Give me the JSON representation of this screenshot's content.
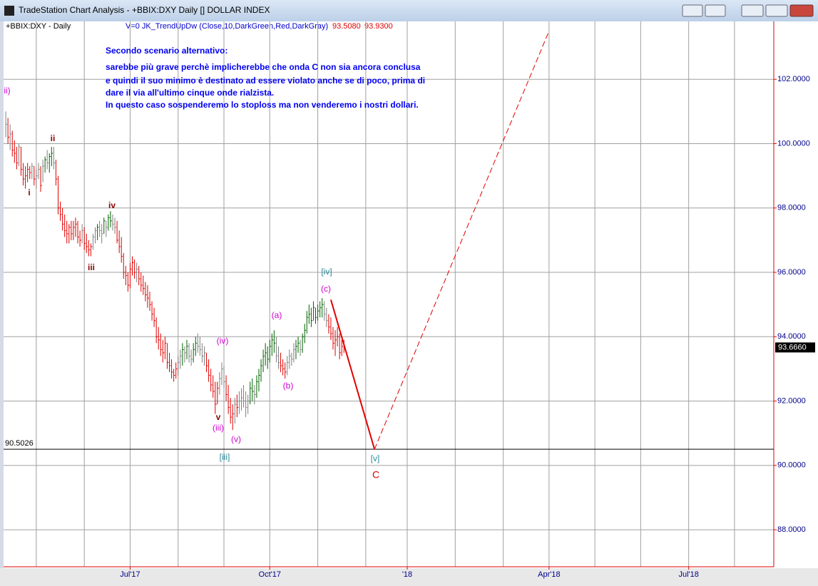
{
  "window": {
    "title": "TradeStation Chart Analysis - +BBIX:DXY Daily [] DOLLAR INDEX"
  },
  "chart_data": {
    "type": "ohlc",
    "symbol": "+BBIX:DXY - Daily",
    "indicator": "V=0  JK_TrendUpDw (Close,10,DarkGreen,Red,DarkGray)",
    "indicator_values": [
      {
        "value": 93.508,
        "label": "93.5080"
      },
      {
        "value": 93.93,
        "label": "93.9300"
      }
    ],
    "annotation_lines": [
      "Secondo scenario alternativo:",
      "sarebbe più grave perchè implicherebbe che onda C non sia ancora conclusa",
      "e quindi il suo minimo è destinato ad essere violato anche se di poco, prima di",
      "dare il via all'ultimo cinque onde rialzista.",
      "In questo caso sospenderemo lo stoploss ma non venderemo i nostri dollari."
    ],
    "wave_labels": [
      "ii)",
      "ii",
      "i",
      "iv",
      "iii",
      "(iv)",
      "v",
      "(iii)",
      "(v)",
      "[iii]",
      "(a)",
      "(b)",
      "[iv]",
      "(c)",
      "[v]",
      "C"
    ],
    "up_color": "#006400",
    "down_color": "#e00000",
    "neutral_color": "#808080",
    "bars": [
      [
        101.0,
        100.2,
        100.6
      ],
      [
        100.8,
        100.0,
        100.2
      ],
      [
        100.6,
        99.8,
        100.3
      ],
      [
        100.4,
        99.6,
        99.8
      ],
      [
        100.1,
        99.4,
        99.7
      ],
      [
        99.9,
        99.2,
        99.4
      ],
      [
        100.0,
        99.3,
        99.9
      ],
      [
        99.9,
        99.0,
        99.2
      ],
      [
        99.4,
        98.7,
        98.9
      ],
      [
        99.3,
        98.6,
        99.0
      ],
      [
        99.4,
        98.8,
        99.2
      ],
      [
        99.3,
        98.9,
        99.1
      ],
      [
        99.4,
        98.9,
        99.3
      ],
      [
        99.3,
        98.7,
        98.9
      ],
      [
        99.2,
        98.6,
        99.0
      ],
      [
        99.4,
        98.9,
        99.2
      ],
      [
        99.3,
        98.5,
        98.7
      ],
      [
        99.5,
        98.8,
        99.3
      ],
      [
        99.6,
        99.1,
        99.5
      ],
      [
        99.8,
        99.2,
        99.4
      ],
      [
        99.7,
        99.1,
        99.6
      ],
      [
        99.9,
        99.3,
        99.7
      ],
      [
        99.9,
        99.2,
        99.4
      ],
      [
        99.5,
        98.7,
        98.9
      ],
      [
        99.0,
        97.8,
        98.0
      ],
      [
        98.2,
        97.6,
        97.8
      ],
      [
        98.0,
        97.3,
        97.5
      ],
      [
        97.8,
        97.1,
        97.3
      ],
      [
        97.6,
        96.9,
        97.2
      ],
      [
        97.5,
        96.9,
        97.4
      ],
      [
        97.6,
        97.0,
        97.2
      ],
      [
        97.6,
        97.0,
        97.4
      ],
      [
        97.7,
        97.1,
        97.5
      ],
      [
        97.6,
        96.9,
        97.1
      ],
      [
        97.3,
        96.8,
        97.0
      ],
      [
        97.5,
        96.9,
        97.3
      ],
      [
        97.4,
        96.7,
        96.9
      ],
      [
        97.2,
        96.6,
        96.8
      ],
      [
        97.0,
        96.5,
        96.7
      ],
      [
        96.9,
        96.5,
        96.8
      ],
      [
        97.2,
        96.7,
        97.1
      ],
      [
        97.4,
        96.9,
        97.3
      ],
      [
        97.5,
        97.0,
        97.4
      ],
      [
        97.6,
        97.1,
        97.3
      ],
      [
        97.5,
        96.9,
        97.2
      ],
      [
        97.7,
        97.2,
        97.6
      ],
      [
        97.6,
        97.1,
        97.4
      ],
      [
        97.8,
        97.3,
        97.7
      ],
      [
        97.9,
        97.4,
        97.6
      ],
      [
        97.8,
        97.3,
        97.5
      ],
      [
        97.7,
        97.2,
        97.4
      ],
      [
        97.6,
        96.9,
        97.0
      ],
      [
        97.3,
        96.6,
        96.8
      ],
      [
        97.1,
        96.3,
        96.5
      ],
      [
        96.6,
        95.8,
        96.0
      ],
      [
        96.2,
        95.6,
        95.9
      ],
      [
        96.0,
        95.4,
        95.6
      ],
      [
        96.3,
        95.5,
        96.1
      ],
      [
        96.5,
        95.9,
        96.3
      ],
      [
        96.4,
        95.8,
        96.0
      ],
      [
        96.3,
        95.7,
        96.1
      ],
      [
        96.2,
        95.6,
        95.8
      ],
      [
        96.0,
        95.4,
        95.6
      ],
      [
        95.9,
        95.3,
        95.5
      ],
      [
        95.7,
        95.1,
        95.3
      ],
      [
        95.6,
        94.9,
        95.2
      ],
      [
        95.4,
        94.8,
        95.0
      ],
      [
        95.1,
        94.5,
        94.7
      ],
      [
        94.9,
        94.3,
        94.5
      ],
      [
        94.6,
        93.8,
        94.0
      ],
      [
        94.3,
        93.6,
        93.9
      ],
      [
        94.1,
        93.4,
        93.6
      ],
      [
        93.9,
        93.2,
        93.5
      ],
      [
        94.0,
        93.3,
        93.8
      ],
      [
        93.8,
        93.0,
        93.2
      ],
      [
        93.5,
        92.9,
        93.1
      ],
      [
        93.3,
        92.7,
        92.9
      ],
      [
        93.0,
        92.6,
        92.8
      ],
      [
        93.2,
        92.7,
        93.0
      ],
      [
        93.4,
        92.8,
        93.2
      ],
      [
        93.6,
        93.0,
        93.4
      ],
      [
        93.8,
        93.1,
        93.6
      ],
      [
        93.7,
        93.2,
        93.5
      ],
      [
        93.9,
        93.3,
        93.7
      ],
      [
        93.8,
        93.2,
        93.4
      ],
      [
        93.6,
        93.1,
        93.3
      ],
      [
        93.8,
        93.2,
        93.6
      ],
      [
        94.0,
        93.4,
        93.8
      ],
      [
        94.1,
        93.5,
        93.7
      ],
      [
        94.0,
        93.4,
        93.6
      ],
      [
        93.8,
        93.2,
        93.4
      ],
      [
        93.7,
        93.1,
        93.5
      ],
      [
        93.5,
        92.9,
        93.1
      ],
      [
        93.3,
        92.6,
        92.8
      ],
      [
        93.0,
        92.3,
        92.5
      ],
      [
        92.8,
        92.1,
        92.3
      ],
      [
        92.6,
        91.6,
        91.9
      ],
      [
        92.6,
        91.9,
        92.4
      ],
      [
        92.9,
        92.2,
        92.7
      ],
      [
        93.2,
        92.5,
        93.0
      ],
      [
        93.1,
        92.4,
        92.6
      ],
      [
        92.8,
        92.0,
        92.2
      ],
      [
        92.5,
        91.6,
        91.8
      ],
      [
        92.1,
        91.3,
        91.5
      ],
      [
        91.9,
        91.1,
        91.6
      ],
      [
        92.1,
        91.3,
        91.9
      ],
      [
        92.2,
        91.5,
        91.8
      ],
      [
        92.3,
        91.6,
        92.0
      ],
      [
        92.4,
        91.7,
        92.1
      ],
      [
        92.5,
        91.8,
        92.0
      ],
      [
        92.3,
        91.5,
        91.8
      ],
      [
        92.2,
        91.6,
        92.0
      ],
      [
        92.6,
        91.9,
        92.4
      ],
      [
        92.7,
        92.0,
        92.3
      ],
      [
        92.5,
        91.9,
        92.2
      ],
      [
        92.8,
        92.1,
        92.6
      ],
      [
        93.0,
        92.3,
        92.8
      ],
      [
        93.3,
        92.6,
        93.1
      ],
      [
        93.6,
        92.9,
        93.4
      ],
      [
        93.8,
        93.1,
        93.5
      ],
      [
        93.7,
        93.0,
        93.3
      ],
      [
        93.9,
        93.2,
        93.7
      ],
      [
        94.1,
        93.4,
        93.9
      ],
      [
        94.2,
        93.5,
        93.8
      ],
      [
        94.0,
        93.2,
        93.4
      ],
      [
        93.7,
        93.0,
        93.2
      ],
      [
        93.5,
        92.9,
        93.1
      ],
      [
        93.3,
        92.8,
        93.0
      ],
      [
        93.2,
        92.7,
        92.9
      ],
      [
        93.4,
        92.8,
        93.2
      ],
      [
        93.6,
        93.0,
        93.4
      ],
      [
        93.5,
        93.1,
        93.3
      ],
      [
        93.8,
        93.2,
        93.6
      ],
      [
        93.9,
        93.3,
        93.7
      ],
      [
        94.0,
        93.5,
        93.8
      ],
      [
        93.9,
        93.4,
        93.6
      ],
      [
        94.1,
        93.5,
        94.0
      ],
      [
        94.4,
        93.8,
        94.2
      ],
      [
        94.8,
        94.1,
        94.6
      ],
      [
        95.0,
        94.4,
        94.7
      ],
      [
        94.9,
        94.3,
        94.5
      ],
      [
        95.1,
        94.5,
        94.9
      ],
      [
        94.9,
        94.4,
        94.6
      ],
      [
        95.0,
        94.5,
        94.8
      ],
      [
        95.1,
        94.6,
        94.9
      ],
      [
        95.2,
        94.6,
        95.0
      ],
      [
        95.1,
        94.5,
        94.7
      ],
      [
        94.9,
        94.3,
        94.5
      ],
      [
        94.7,
        94.1,
        94.3
      ],
      [
        94.6,
        93.9,
        94.1
      ],
      [
        94.3,
        93.6,
        93.8
      ],
      [
        94.2,
        93.4,
        93.9
      ],
      [
        94.3,
        93.7,
        94.0
      ],
      [
        94.1,
        93.3,
        93.5
      ],
      [
        93.9,
        93.4,
        93.7
      ],
      [
        93.9,
        93.5,
        93.666
      ]
    ],
    "last_price": {
      "value": 93.666,
      "label": "93.6660"
    },
    "support_line": {
      "value": 90.5026,
      "label": "90.5026"
    },
    "projection_lines": [
      {
        "x": [
          149,
          169
        ],
        "y": [
          95.15,
          90.5026
        ],
        "color": "#e00000",
        "dashed": false
      },
      {
        "x": [
          169,
          249
        ],
        "y": [
          90.5026,
          103.5
        ],
        "color": "#e00000",
        "dashed": true
      }
    ],
    "xlim": [
      -1,
      352
    ],
    "xticks": [
      {
        "value": 57,
        "label": "Jul'17"
      },
      {
        "value": 121,
        "label": "Oct'17"
      },
      {
        "value": 184,
        "label": "'18"
      },
      {
        "value": 249,
        "label": "Apr'18"
      },
      {
        "value": 313,
        "label": "Jul'18"
      }
    ],
    "xgrid": [
      14,
      36,
      57,
      79,
      100,
      121,
      143,
      165,
      184,
      206,
      228,
      249,
      270,
      291,
      313,
      334
    ],
    "ylim": [
      86.85,
      103.8
    ],
    "yticks": [
      {
        "value": 88,
        "label": "88.0000"
      },
      {
        "value": 90,
        "label": "90.0000"
      },
      {
        "value": 92,
        "label": "92.0000"
      },
      {
        "value": 94,
        "label": "94.0000"
      },
      {
        "value": 96,
        "label": "96.0000"
      },
      {
        "value": 98,
        "label": "98.0000"
      },
      {
        "value": 100,
        "label": "100.0000"
      },
      {
        "value": 102,
        "label": "102.0000"
      }
    ],
    "grid": true
  }
}
